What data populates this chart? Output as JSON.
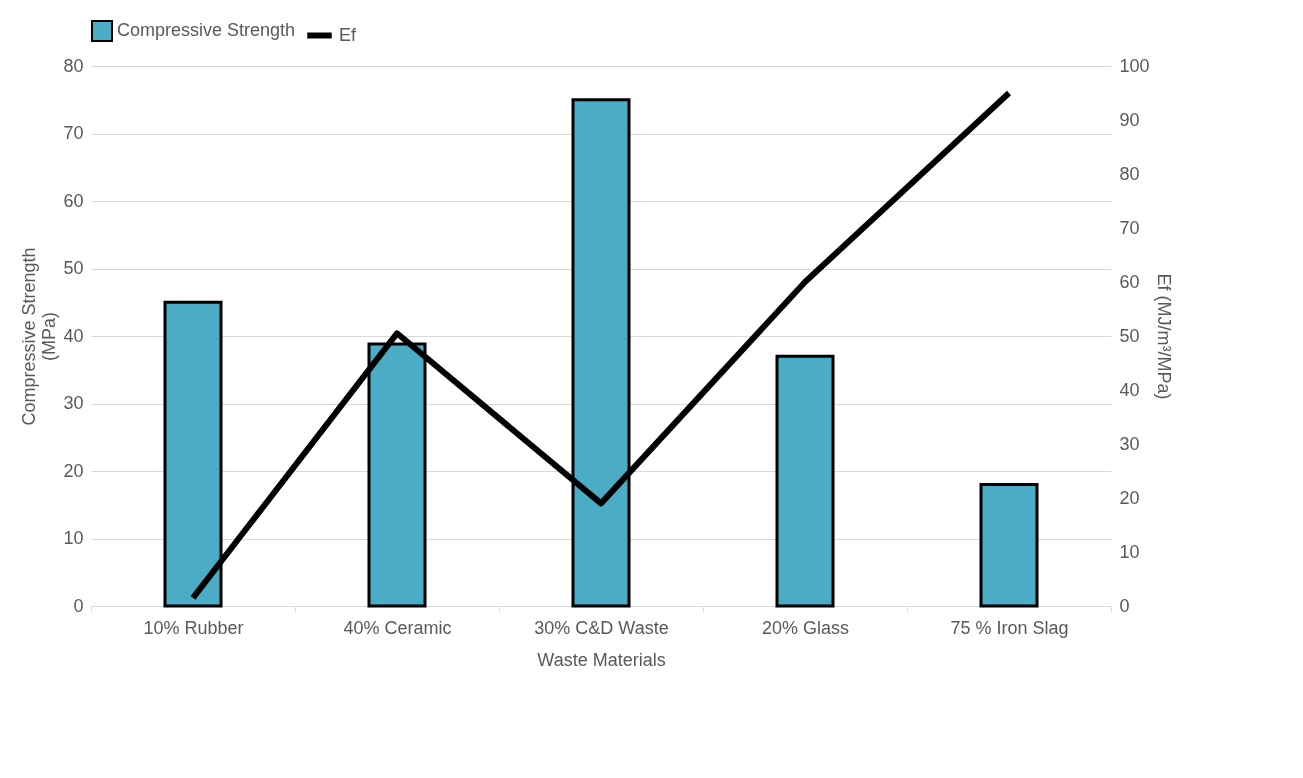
{
  "chart_data": {
    "type": "bar",
    "xlabel": "Waste Materials",
    "ylabel": "Compressive Strength (MPa)",
    "y2label": "Ef (MJ/m³/MPa)",
    "categories": [
      "10% Rubber",
      "40% Ceramic",
      "30% C&D Waste",
      "20%  Glass",
      "75 % Iron Slag"
    ],
    "series": [
      {
        "name": "Compressive Strength",
        "color": "#4bacc6",
        "values": [
          45,
          38.8,
          75,
          37,
          18
        ]
      },
      {
        "name": "Ef",
        "type": "line",
        "axis": "y2",
        "color": "#000000",
        "values": [
          1.5,
          50.5,
          19,
          60,
          95
        ]
      }
    ],
    "ylim": [
      0,
      80
    ],
    "yticks": [
      0,
      10,
      20,
      30,
      40,
      50,
      60,
      70,
      80
    ],
    "y2lim": [
      0,
      100
    ],
    "y2ticks": [
      0,
      10,
      20,
      30,
      40,
      50,
      60,
      70,
      80,
      90,
      100
    ],
    "grid": "y",
    "legend": "top"
  }
}
